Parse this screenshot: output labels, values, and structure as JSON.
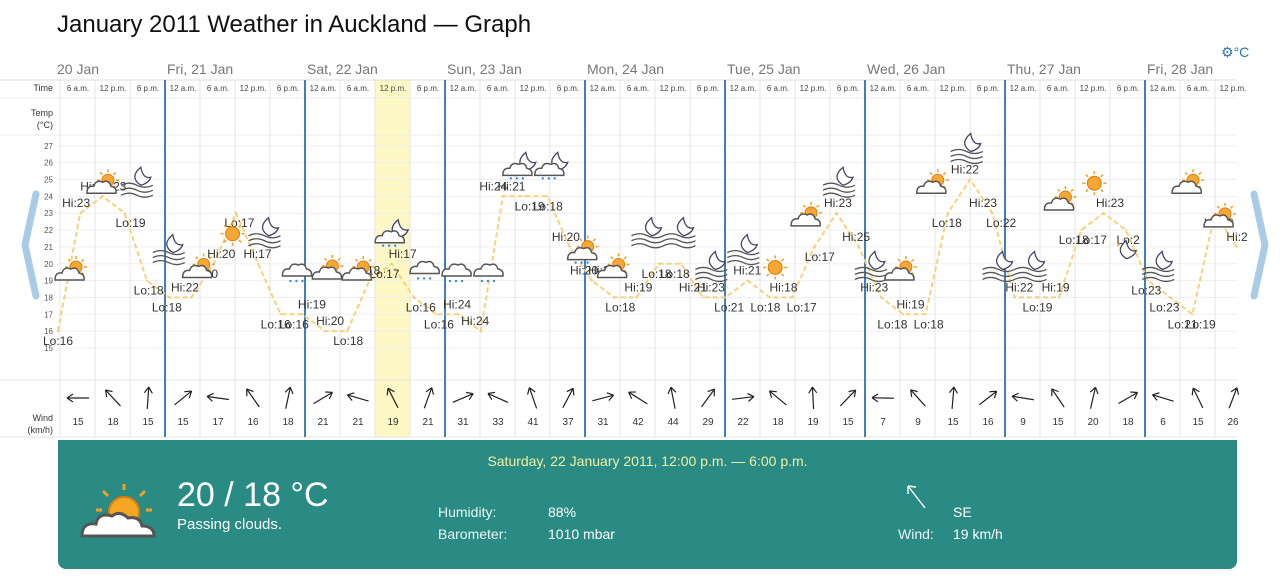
{
  "header": {
    "title": "January 2011 Weather in Auckland — Graph",
    "unit_label": "°C",
    "settings_icon": "gear-icon"
  },
  "nav": {
    "prev_icon": "chevron-left-icon",
    "next_icon": "chevron-right-icon"
  },
  "row_labels": {
    "time": "Time",
    "temp_line1": "Temp",
    "temp_line2": "(°C)",
    "wind_line1": "Wind",
    "wind_line2": "(km/h)"
  },
  "chart_data": {
    "type": "line",
    "days": [
      "20 Jan",
      "Fri, 21 Jan",
      "Sat, 22 Jan",
      "Sun, 23 Jan",
      "Mon, 24 Jan",
      "Tue, 25 Jan",
      "Wed, 26 Jan",
      "Thu, 27 Jan",
      "Fri, 28 Jan"
    ],
    "time_ticks": [
      "12 a.m.",
      "6 a.m.",
      "12 p.m.",
      "6 p.m."
    ],
    "y_ticks": [
      15,
      16,
      17,
      18,
      19,
      20,
      21,
      22,
      23,
      24,
      25,
      26,
      27
    ],
    "ylim": [
      15,
      27
    ],
    "grid": true,
    "highlighted_period": 9,
    "temperature": [
      16,
      23,
      24,
      23,
      19,
      18,
      18,
      20,
      23,
      20,
      17,
      17,
      16,
      16,
      19,
      20,
      18,
      17,
      17,
      16,
      24,
      24,
      24,
      21,
      19,
      18,
      18,
      20,
      20,
      18,
      18,
      19,
      18,
      18,
      21,
      23,
      21,
      18,
      17,
      17,
      23,
      25,
      23,
      18,
      18,
      18,
      22,
      23,
      22,
      19,
      18,
      17,
      23,
      21
    ],
    "temp_labels": [
      "Lo:16",
      "Hi:23",
      "Hi:24",
      "Hi:23",
      "Lo:19",
      "Lo:18",
      "Lo:18",
      "Hi:22",
      "Lo:20",
      "Hi:20",
      "Lo:17",
      "Hi:17",
      "Lo:16",
      "Lo:16",
      "Hi:19",
      "Hi:20",
      "Lo:18",
      "Hi:18",
      "Lo:17",
      "Hi:17",
      "Lo:16",
      "Lo:16",
      "Hi:24",
      "Hi:24",
      "Hi:24",
      "Hi:21",
      "Lo:19",
      "Lo:18",
      "Hi:20",
      "Hi:20",
      "Hi:20",
      "Lo:18",
      "Hi:19",
      "Lo:18",
      "Lo:18",
      "Hi:21",
      "Hi:23",
      "Lo:21",
      "Hi:21",
      "Lo:18",
      "Hi:18",
      "Lo:17",
      "Lo:17",
      "Hi:23",
      "Hi:25",
      "Hi:23",
      "Lo:18",
      "Hi:19",
      "Lo:18",
      "Lo:18",
      "Hi:22",
      "Hi:23",
      "Lo:22",
      "Hi:22",
      "Lo:19",
      "Hi:19",
      "Lo:18",
      "Lo:17",
      "Hi:23",
      "Lo:2",
      "Lo:23",
      "Lo:23",
      "Lo:21",
      "Lo:19",
      "Lo:20",
      "Hi:2"
    ],
    "icons": [
      "partly-sunny",
      "partly-sunny",
      "moon-clouds",
      "moon-clouds",
      "partly-sunny",
      "sun",
      "moon-clouds",
      "cloud-rain",
      "cloud-partly",
      "partly-sunny",
      "moon-rain",
      "cloud-rain",
      "cloud-rain",
      "cloud-rain",
      "moon-rain",
      "moon-rain",
      "partly-rain",
      "partly-sunny",
      "moon-clouds",
      "moon-clouds",
      "moon-clouds",
      "moon-clouds",
      "sun",
      "partly-cloudy",
      "moon-clouds",
      "moon-clouds",
      "partly-sunny",
      "partly-sunny",
      "moon-clouds",
      "moon-clouds",
      "moon-clouds",
      "partly-sunny",
      "sun",
      "moon-clear",
      "moon-clouds",
      "partly-sunny",
      "partly-sunny"
    ],
    "wind_speed": [
      15,
      18,
      15,
      15,
      17,
      16,
      18,
      21,
      21,
      19,
      21,
      31,
      33,
      41,
      37,
      31,
      42,
      44,
      29,
      22,
      18,
      19,
      15,
      7,
      9,
      15,
      16,
      9,
      15,
      20,
      18,
      6,
      15,
      26
    ],
    "wind_icon": "wind-arrow-icon",
    "selected_period_index": 9
  },
  "details": {
    "period": "Saturday, 22 January 2011, 12:00 p.m. — 6:00 p.m.",
    "temp": "20 / 18 °C",
    "description": "Passing clouds.",
    "icon": "partly-cloudy-icon",
    "humidity_label": "Humidity:",
    "humidity_value": "88%",
    "barometer_label": "Barometer:",
    "barometer_value": "1010 mbar",
    "wind_direction": "SE",
    "wind_label": "Wind:",
    "wind_value": "19 km/h",
    "wind_dir_icon": "wind-direction-arrow-icon"
  }
}
